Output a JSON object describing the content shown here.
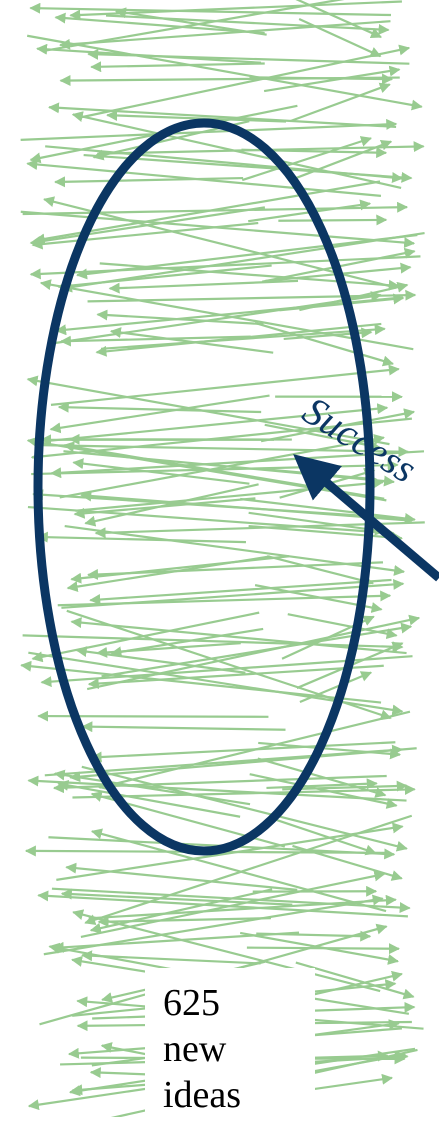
{
  "colors": {
    "arrow": "#98cb90",
    "highlight": "#0b3663",
    "text": "#0b3663"
  },
  "labels": {
    "success": "Success",
    "new_ideas": "625\nnew\nideas"
  },
  "icons": {
    "arrow_head": "arrowhead-icon"
  }
}
